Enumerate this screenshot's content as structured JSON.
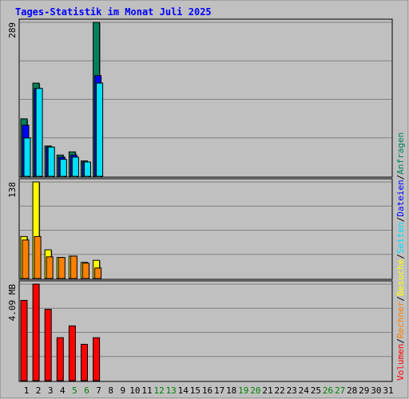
{
  "chart_data": {
    "type": "bar",
    "title": "Tages-Statistik im Monat Juli 2025",
    "days": [
      "1",
      "2",
      "3",
      "4",
      "5",
      "6",
      "7",
      "8",
      "9",
      "10",
      "11",
      "12",
      "13",
      "14",
      "15",
      "16",
      "17",
      "18",
      "19",
      "20",
      "21",
      "22",
      "23",
      "24",
      "25",
      "26",
      "27",
      "28",
      "29",
      "30",
      "31"
    ],
    "weekend_days": [
      "5",
      "6",
      "12",
      "13",
      "19",
      "20",
      "26",
      "27"
    ],
    "panels": [
      {
        "name": "hits",
        "max_label": "289",
        "ymax": 289,
        "series": [
          {
            "name": "Anfragen",
            "color": "#00805a",
            "values": [
              108,
              175,
              57,
              40,
              46,
              29,
              289
            ]
          },
          {
            "name": "Dateien",
            "color": "#0000ff",
            "values": [
              96,
              165,
              55,
              36,
              40,
              27,
              189
            ]
          },
          {
            "name": "Seiten",
            "color": "#00e0ff",
            "values": [
              72,
              165,
              55,
              32,
              36,
              27,
              175
            ]
          }
        ]
      },
      {
        "name": "visits",
        "max_label": "138",
        "ymax": 138,
        "series": [
          {
            "name": "Besuche",
            "color": "#ffff00",
            "values": [
              60,
              138,
              41,
              30,
              32,
              23,
              26
            ]
          },
          {
            "name": "Rechner",
            "color": "#ff8000",
            "values": [
              55,
              60,
              31,
              30,
              32,
              22,
              15
            ]
          }
        ]
      },
      {
        "name": "volume",
        "max_label": "4.09 MB",
        "ymax": 4.09,
        "series": [
          {
            "name": "Volumen",
            "color": "#ff0000",
            "values": [
              3.4,
              4.09,
              3.02,
              1.82,
              2.32,
              1.54,
              1.82
            ]
          }
        ]
      }
    ],
    "legend": [
      {
        "text": "Volumen",
        "color": "#ff0000"
      },
      {
        "text": "Rechner",
        "color": "#ff8000"
      },
      {
        "text": "Besuche",
        "color": "#ffff00"
      },
      {
        "text": "Seiten",
        "color": "#00e0ff"
      },
      {
        "text": "Dateien",
        "color": "#0000ff"
      },
      {
        "text": "Anfragen",
        "color": "#00805a"
      }
    ],
    "legend_separator": "/",
    "colors": {
      "background": "#c0c0c0",
      "panel": "#c0c0c0",
      "grid": "#808080",
      "title": "#0000ff",
      "weekday": "#000000",
      "weekend": "#008000"
    }
  }
}
